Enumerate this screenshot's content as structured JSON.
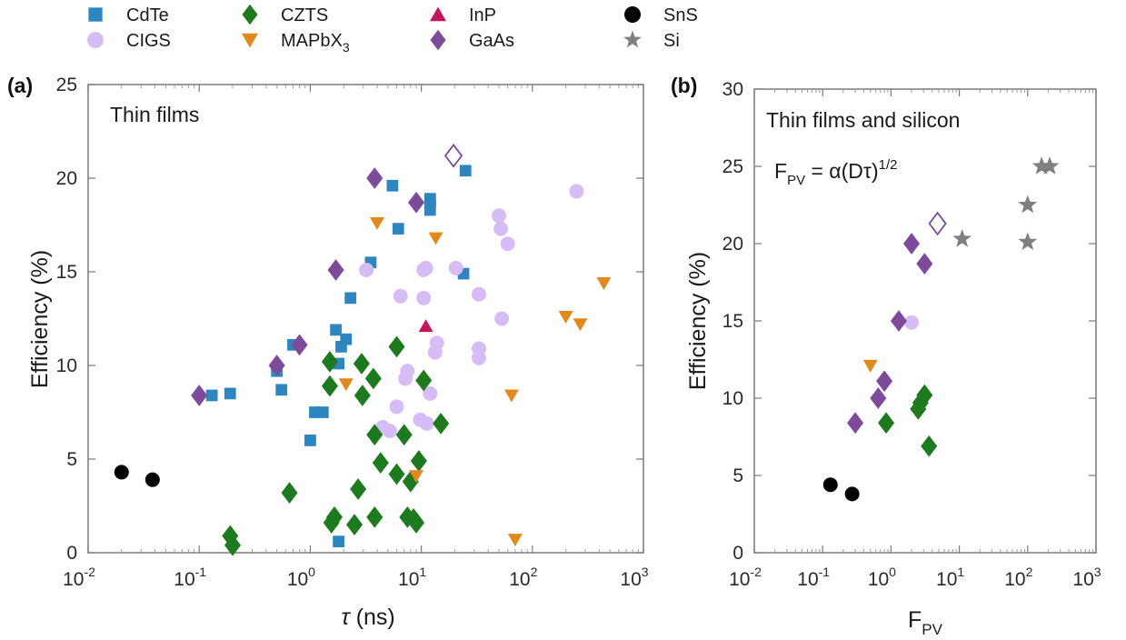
{
  "legend": [
    {
      "name": "CdTe",
      "marker": "square",
      "color": "#2e86c1",
      "fill": true
    },
    {
      "name": "CIGS",
      "marker": "circle",
      "color": "#d7bdf5",
      "fill": true
    },
    {
      "name": "CZTS",
      "marker": "diamond",
      "color": "#1e7a1e",
      "fill": true
    },
    {
      "name": "MAPbX",
      "sub": "3",
      "marker": "triangle-down",
      "color": "#e08a1e",
      "fill": true
    },
    {
      "name": "InP",
      "marker": "triangle-up",
      "color": "#c2185b",
      "fill": true
    },
    {
      "name": "GaAs",
      "marker": "diamond",
      "color": "#7d4b99",
      "fill": true
    },
    {
      "name": "SnS",
      "marker": "circle",
      "color": "#000000",
      "fill": true
    },
    {
      "name": "Si",
      "marker": "star",
      "color": "#808080",
      "fill": true
    }
  ],
  "panels": [
    {
      "tag": "(a)",
      "inset": "Thin films",
      "xlabel_sym": "τ",
      "xlabel_rest": " (ns)",
      "ylabel": "Efficiency (%)"
    },
    {
      "tag": "(b)",
      "inset": "Thin films and silicon",
      "formula_lhs": "F",
      "formula_lhs_sub": "PV",
      "formula_rhs": " = α(Dτ)",
      "formula_sup": "1/2",
      "xlabel": "F",
      "xlabel_sub": "PV",
      "ylabel": "Efficiency (%)"
    }
  ],
  "chart_data": [
    {
      "type": "scatter",
      "title": "",
      "xlabel": "τ (ns)",
      "ylabel": "Efficiency (%)",
      "xscale": "log",
      "xlim": [
        0.01,
        1000
      ],
      "ylim": [
        0,
        25
      ],
      "xticks": [
        {
          "base": "10",
          "exp": "-2"
        },
        {
          "base": "10",
          "exp": "-1"
        },
        {
          "base": "10",
          "exp": "0"
        },
        {
          "base": "10",
          "exp": "1"
        },
        {
          "base": "10",
          "exp": "2"
        },
        {
          "base": "10",
          "exp": "3"
        }
      ],
      "yticks": [
        "0",
        "5",
        "10",
        "15",
        "20",
        "25"
      ],
      "series": [
        {
          "name": "CdTe",
          "points": [
            [
              0.13,
              8.4
            ],
            [
              0.19,
              8.5
            ],
            [
              0.5,
              9.7
            ],
            [
              0.55,
              8.7
            ],
            [
              0.7,
              11.1
            ],
            [
              1.0,
              6.0
            ],
            [
              1.1,
              7.5
            ],
            [
              1.3,
              7.5
            ],
            [
              1.7,
              11.9
            ],
            [
              1.8,
              10.1
            ],
            [
              1.9,
              11.0
            ],
            [
              2.1,
              11.4
            ],
            [
              2.3,
              13.6
            ],
            [
              1.8,
              0.6
            ],
            [
              3.5,
              15.5
            ],
            [
              5.5,
              19.6
            ],
            [
              6.2,
              17.3
            ],
            [
              12,
              18.6
            ],
            [
              12,
              18.9
            ],
            [
              12,
              18.3
            ],
            [
              12,
              18.8
            ],
            [
              24,
              14.9
            ],
            [
              25,
              20.4
            ]
          ]
        },
        {
          "name": "CIGS",
          "points": [
            [
              3.2,
              15.1
            ],
            [
              4.5,
              6.7
            ],
            [
              5.2,
              6.5
            ],
            [
              6.0,
              7.8
            ],
            [
              6.5,
              13.7
            ],
            [
              7.2,
              9.3
            ],
            [
              7.5,
              9.7
            ],
            [
              9.8,
              7.1
            ],
            [
              10.5,
              13.6
            ],
            [
              10.5,
              15.1
            ],
            [
              11.0,
              15.2
            ],
            [
              11.2,
              6.9
            ],
            [
              12.0,
              8.5
            ],
            [
              13.3,
              10.7
            ],
            [
              13.8,
              11.2
            ],
            [
              20.5,
              15.2
            ],
            [
              33,
              13.8
            ],
            [
              33,
              10.9
            ],
            [
              33,
              10.4
            ],
            [
              50,
              18.0
            ],
            [
              52,
              17.3
            ],
            [
              53,
              12.5
            ],
            [
              60,
              16.5
            ],
            [
              250,
              19.3
            ]
          ]
        },
        {
          "name": "CZTS",
          "points": [
            [
              0.19,
              0.9
            ],
            [
              0.2,
              0.4
            ],
            [
              0.65,
              3.2
            ],
            [
              1.5,
              10.2
            ],
            [
              1.5,
              8.9
            ],
            [
              1.55,
              1.6
            ],
            [
              1.65,
              1.9
            ],
            [
              2.5,
              1.5
            ],
            [
              2.7,
              3.4
            ],
            [
              2.9,
              10.1
            ],
            [
              2.95,
              8.4
            ],
            [
              3.7,
              9.3
            ],
            [
              3.8,
              6.3
            ],
            [
              3.8,
              1.9
            ],
            [
              4.3,
              4.8
            ],
            [
              6.0,
              11.0
            ],
            [
              6.0,
              4.2
            ],
            [
              7.0,
              6.3
            ],
            [
              7.5,
              1.9
            ],
            [
              8.0,
              3.8
            ],
            [
              8.5,
              1.8
            ],
            [
              9.0,
              1.6
            ],
            [
              9.5,
              4.9
            ],
            [
              10.5,
              9.2
            ],
            [
              15,
              6.9
            ]
          ]
        },
        {
          "name": "MAPbX3",
          "points": [
            [
              2.1,
              9.0
            ],
            [
              4.0,
              17.6
            ],
            [
              9.0,
              4.1
            ],
            [
              13.5,
              16.8
            ],
            [
              65,
              8.4
            ],
            [
              70,
              0.7
            ],
            [
              200,
              12.6
            ],
            [
              270,
              12.2
            ],
            [
              440,
              14.4
            ]
          ]
        },
        {
          "name": "InP",
          "points": [
            [
              11,
              12.1
            ]
          ]
        },
        {
          "name": "GaAs",
          "points": [
            [
              0.1,
              8.4
            ],
            [
              0.5,
              10.0
            ],
            [
              0.8,
              11.1
            ],
            [
              1.7,
              15.1
            ],
            [
              3.8,
              20.0
            ],
            [
              9,
              18.7
            ]
          ]
        },
        {
          "name": "GaAs (open)",
          "points": [
            [
              19.5,
              21.2
            ]
          ]
        },
        {
          "name": "SnS",
          "points": [
            [
              0.02,
              4.3
            ],
            [
              0.038,
              3.9
            ]
          ]
        }
      ]
    },
    {
      "type": "scatter",
      "title": "",
      "xlabel": "F_PV",
      "ylabel": "Efficiency (%)",
      "xscale": "log",
      "xlim": [
        0.01,
        1000
      ],
      "ylim": [
        0,
        30
      ],
      "xticks": [
        {
          "base": "10",
          "exp": "-2"
        },
        {
          "base": "10",
          "exp": "-1"
        },
        {
          "base": "10",
          "exp": "0"
        },
        {
          "base": "10",
          "exp": "1"
        },
        {
          "base": "10",
          "exp": "2"
        },
        {
          "base": "10",
          "exp": "3"
        }
      ],
      "yticks": [
        "0",
        "5",
        "10",
        "15",
        "20",
        "25",
        "30"
      ],
      "series": [
        {
          "name": "CIGS",
          "points": [
            [
              2.0,
              14.9
            ]
          ]
        },
        {
          "name": "CZTS",
          "points": [
            [
              0.85,
              8.4
            ],
            [
              2.5,
              9.3
            ],
            [
              2.7,
              9.7
            ],
            [
              3.1,
              10.2
            ],
            [
              3.6,
              6.9
            ]
          ]
        },
        {
          "name": "MAPbX3",
          "points": [
            [
              0.5,
              12.1
            ]
          ]
        },
        {
          "name": "GaAs",
          "points": [
            [
              0.3,
              8.4
            ],
            [
              0.65,
              10.0
            ],
            [
              0.8,
              11.1
            ],
            [
              1.3,
              15.0
            ],
            [
              2.0,
              20.0
            ],
            [
              3.1,
              18.7
            ]
          ]
        },
        {
          "name": "GaAs (open)",
          "points": [
            [
              4.8,
              21.3
            ]
          ]
        },
        {
          "name": "SnS",
          "points": [
            [
              0.13,
              4.4
            ],
            [
              0.27,
              3.8
            ]
          ]
        },
        {
          "name": "Si",
          "points": [
            [
              11,
              20.3
            ],
            [
              100,
              22.5
            ],
            [
              100,
              20.1
            ],
            [
              160,
              25.0
            ],
            [
              210,
              25.0
            ]
          ]
        }
      ]
    }
  ]
}
